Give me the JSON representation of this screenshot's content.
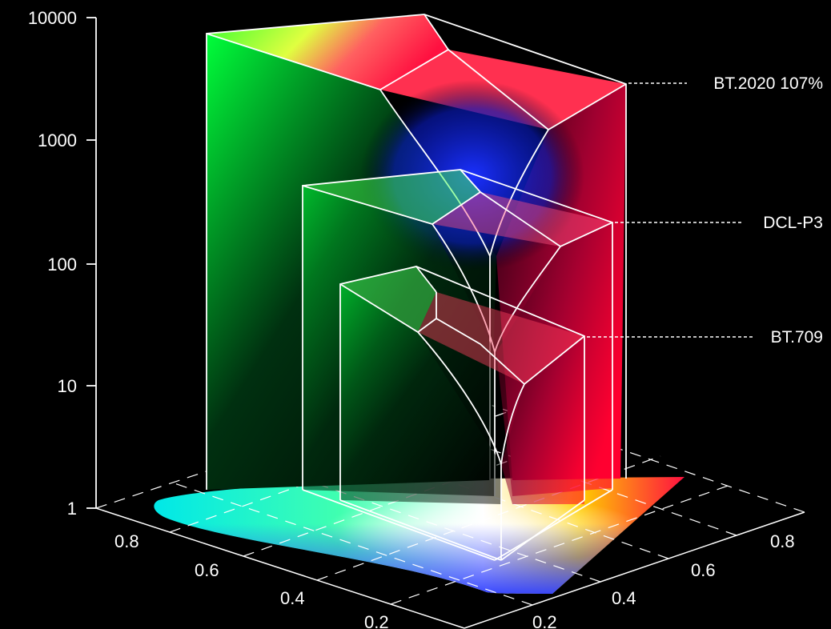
{
  "chart_data": {
    "type": "3d-color-volume",
    "title": "",
    "z_axis": {
      "scale": "log",
      "ticks": [
        "10000",
        "1000",
        "100",
        "10",
        "1"
      ]
    },
    "left_axis": {
      "ticks": [
        "0.8",
        "0.6",
        "0.4",
        "0.2"
      ]
    },
    "right_axis": {
      "ticks": [
        "0.8",
        "0.6",
        "0.4",
        "0.2"
      ]
    },
    "volumes": [
      {
        "name": "BT.2020 107%",
        "peak_nits": 10000
      },
      {
        "name": "DCL-P3",
        "peak_nits": 1000
      },
      {
        "name": "BT.709",
        "peak_nits": 100
      }
    ],
    "background_color": "#000000",
    "line_color": "#ffffff",
    "gamut_colors": {
      "green": "#00ff3a",
      "red": "#ff0030",
      "blue": "#0a20ff",
      "cyan": "#00ffe0",
      "yellow": "#ffff00"
    }
  }
}
